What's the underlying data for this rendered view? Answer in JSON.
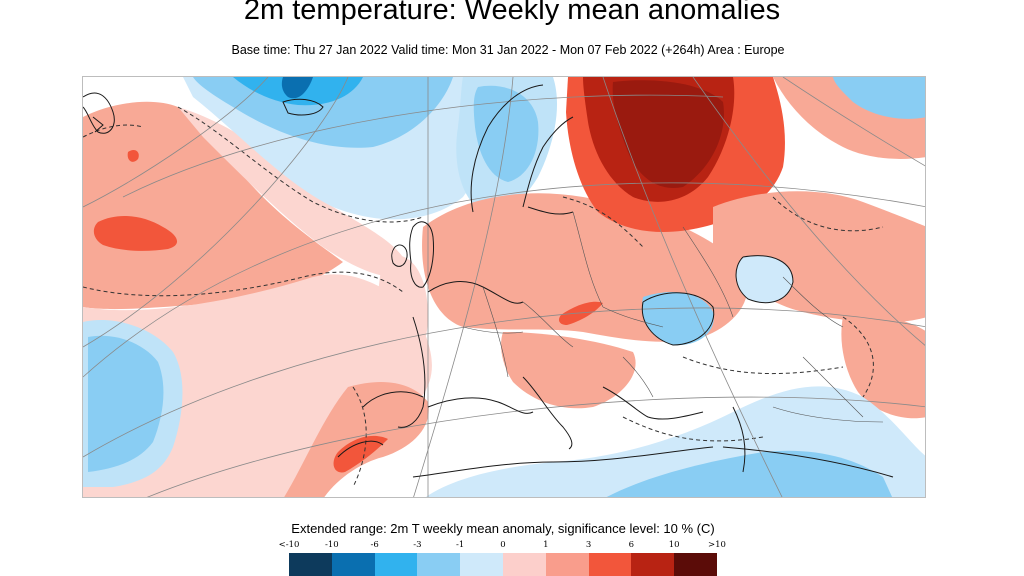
{
  "title": "2m temperature: Weekly mean anomalies",
  "subtitle": "Base time: Thu 27 Jan 2022 Valid time: Mon 31 Jan 2022 - Mon 07 Feb 2022 (+264h) Area : Europe",
  "map": {
    "area": "Europe",
    "variable": "2m T weekly mean anomaly",
    "projection": "polar-stereographic",
    "graticule": true,
    "coastlines": true
  },
  "legend": {
    "caption": "Extended range: 2m T weekly mean anomaly, significance level: 10 % (C)",
    "labels": [
      "<-10",
      "-10",
      "-6",
      "-3",
      "-1",
      "0",
      "1",
      "3",
      "6",
      "10",
      ">10"
    ],
    "colors": [
      "#0d3a5c",
      "#0a6fb0",
      "#31b2ee",
      "#89cdf3",
      "#cfe9fa",
      "#ffffff",
      "#fccfcb",
      "#f99d8c",
      "#f2563b",
      "#b82313",
      "#5b0c08"
    ]
  }
}
